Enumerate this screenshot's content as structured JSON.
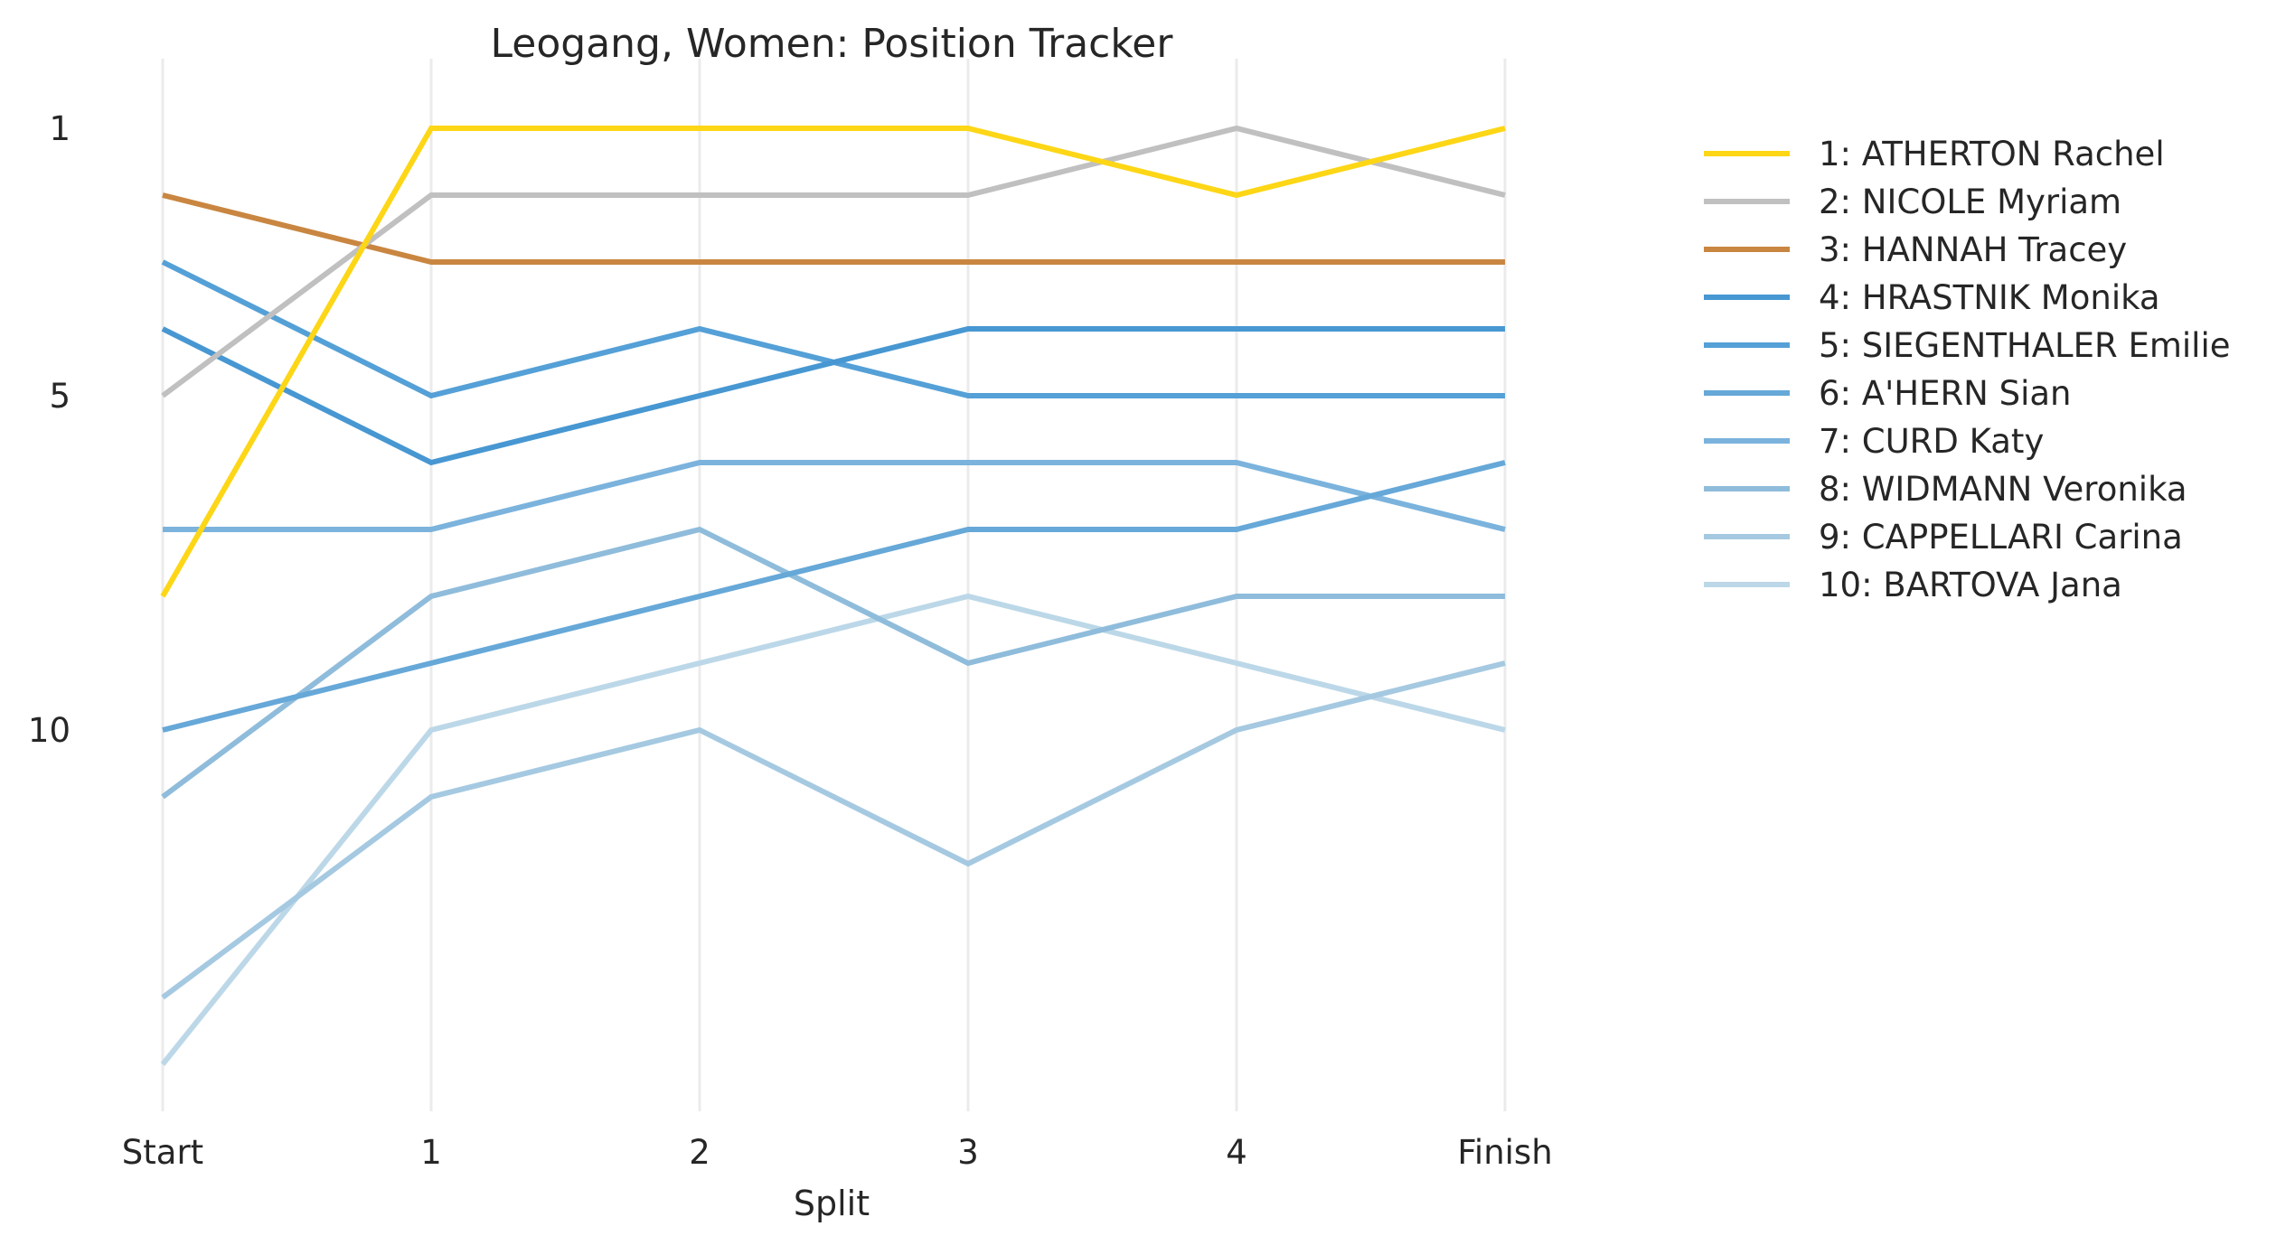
{
  "chart_data": {
    "type": "line",
    "title": "Leogang, Women: Position Tracker",
    "xlabel": "Split",
    "ylabel": "",
    "x": [
      "Start",
      "1",
      "2",
      "3",
      "4",
      "Finish"
    ],
    "y_ticks": [
      1,
      5,
      10
    ],
    "ylim": [
      15.5,
      0.8
    ],
    "y_inverted": true,
    "grid": "vertical",
    "legend_position": "outside-right-top",
    "series": [
      {
        "name": "1: ATHERTON Rachel",
        "color": "#FDD616",
        "values": [
          8,
          1,
          1,
          1,
          2,
          1
        ]
      },
      {
        "name": "2: NICOLE Myriam",
        "color": "#C0C0C0",
        "values": [
          5,
          2,
          2,
          2,
          1,
          2
        ]
      },
      {
        "name": "3: HANNAH Tracey",
        "color": "#C98641",
        "values": [
          2,
          3,
          3,
          3,
          3,
          3
        ]
      },
      {
        "name": "4: HRASTNIK Monika",
        "color": "#4797D2",
        "values": [
          4,
          6,
          5,
          4,
          4,
          4
        ]
      },
      {
        "name": "5: SIEGENTHALER Emilie",
        "color": "#54A0D7",
        "values": [
          3,
          5,
          4,
          5,
          5,
          5
        ]
      },
      {
        "name": "6: A'HERN Sian",
        "color": "#66A8D8",
        "values": [
          10,
          9,
          8,
          7,
          7,
          6
        ]
      },
      {
        "name": "7: CURD Katy",
        "color": "#7BB3DD",
        "values": [
          7,
          7,
          6,
          6,
          6,
          7
        ]
      },
      {
        "name": "8: WIDMANN Veronika",
        "color": "#8FBCDB",
        "values": [
          11,
          8,
          7,
          9,
          8,
          8
        ]
      },
      {
        "name": "9: CAPPELLARI Carina",
        "color": "#A5C9E1",
        "values": [
          14,
          11,
          10,
          12,
          10,
          9
        ]
      },
      {
        "name": "10: BARTOVA Jana",
        "color": "#BCD8E8",
        "values": [
          15,
          10,
          9,
          8,
          9,
          10
        ]
      }
    ]
  }
}
